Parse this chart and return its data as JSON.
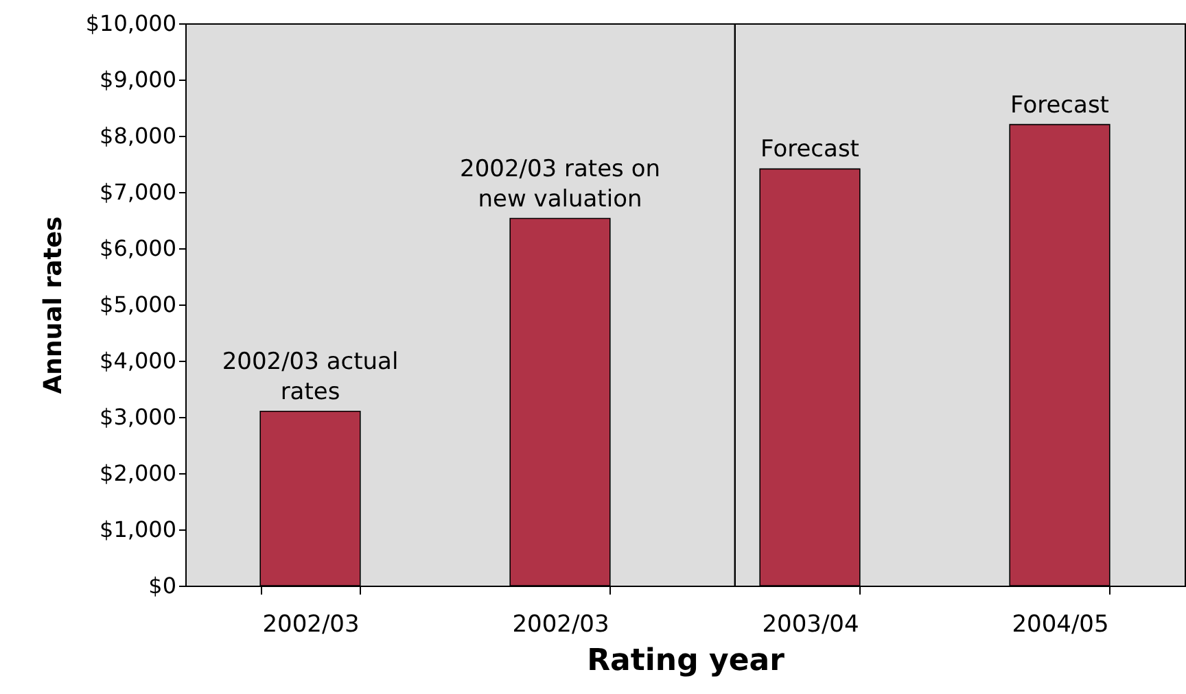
{
  "chart_data": {
    "type": "bar",
    "xlabel": "Rating year",
    "ylabel": "Annual rates",
    "categories": [
      "2002/03",
      "2002/03",
      "2003/04",
      "2004/05"
    ],
    "values": [
      3100,
      6530,
      7410,
      8200
    ],
    "color": "#b03347",
    "ylim": [
      0,
      10000
    ],
    "yticks": [
      {
        "value": 0,
        "label": "$0"
      },
      {
        "value": 1000,
        "label": "$1,000"
      },
      {
        "value": 2000,
        "label": "$2,000"
      },
      {
        "value": 3000,
        "label": "$3,000"
      },
      {
        "value": 4000,
        "label": "$4,000"
      },
      {
        "value": 5000,
        "label": "$5,000"
      },
      {
        "value": 6000,
        "label": "$6,000"
      },
      {
        "value": 7000,
        "label": "$7,000"
      },
      {
        "value": 8000,
        "label": "$8,000"
      },
      {
        "value": 9000,
        "label": "$9,000"
      },
      {
        "value": 10000,
        "label": "$10,000"
      }
    ],
    "ref_lines": [
      {
        "axis": "x",
        "value": "2003/04",
        "color": "#000000"
      }
    ],
    "annotations": [
      "2002/03 actual rates",
      "2002/03 rates on new valuation",
      "Forecast",
      "Forecast"
    ],
    "grid": false
  }
}
